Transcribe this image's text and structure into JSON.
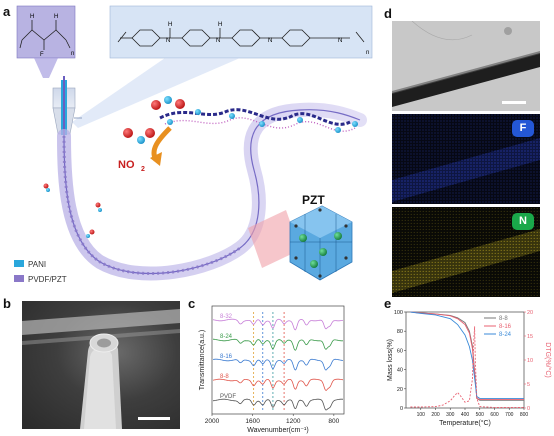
{
  "panels": {
    "a": {
      "letter": "a",
      "no2_label": "NO",
      "no2_sub": "2",
      "pzt_label": "PZT",
      "legend": [
        {
          "label": "PANI",
          "color": "#2aa7dc"
        },
        {
          "label": "PVDF/PZT",
          "color": "#8a78c8"
        }
      ],
      "subscript_n1": "n",
      "subscript_n2": "n"
    },
    "b": {
      "letter": "b"
    },
    "c": {
      "letter": "c"
    },
    "d": {
      "letter": "d",
      "map_f": {
        "label": "F",
        "color": "#2457d6"
      },
      "map_n": {
        "label": "N",
        "color": "#1aa84a"
      }
    },
    "e": {
      "letter": "e"
    }
  },
  "chart_data": [
    {
      "panel": "c",
      "type": "line",
      "xlabel": "Wavenumber(cm⁻¹)",
      "ylabel": "Transmittance(a.u.)",
      "xlim": [
        2000,
        700
      ],
      "xticks": [
        "2000",
        "1600",
        "1200",
        "800"
      ],
      "series": [
        {
          "name": "8-32",
          "color": "#c77fd8"
        },
        {
          "name": "8-24",
          "color": "#3a9a4a"
        },
        {
          "name": "8-16",
          "color": "#3a7ad0"
        },
        {
          "name": "8-8",
          "color": "#e0554a"
        },
        {
          "name": "PVDF",
          "color": "#555555"
        }
      ],
      "marker_lines": [
        {
          "x": 1590,
          "color": "#e0a030"
        },
        {
          "x": 1500,
          "color": "#3a7ad0"
        },
        {
          "x": 1400,
          "color": "#3a9aa0"
        },
        {
          "x": 1290,
          "color": "#e0554a"
        }
      ]
    },
    {
      "panel": "e",
      "type": "line",
      "xlabel": "Temperature(°C)",
      "ylabel": "Mass loss(%)",
      "y2label": "DTG(%/°C)",
      "xlim": [
        0,
        800
      ],
      "ylim": [
        0,
        100
      ],
      "y2lim": [
        0,
        20
      ],
      "xticks": [
        "100",
        "200",
        "300",
        "400",
        "500",
        "600",
        "700",
        "800"
      ],
      "yticks": [
        "0",
        "20",
        "40",
        "60",
        "80",
        "100"
      ],
      "y2ticks": [
        "0",
        "5",
        "10",
        "15",
        "20"
      ],
      "legend": [
        {
          "name": "8-8",
          "color": "#777777"
        },
        {
          "name": "8-16",
          "color": "#e86070"
        },
        {
          "name": "8-24",
          "color": "#3a8ad8"
        }
      ],
      "series": [
        {
          "name": "8-8",
          "color": "#777777",
          "x": [
            30,
            100,
            200,
            300,
            350,
            400,
            430,
            450,
            470,
            480,
            500,
            600,
            700,
            800
          ],
          "y": [
            100,
            99,
            98,
            96.5,
            94,
            89,
            80,
            65,
            30,
            10,
            8,
            8,
            8,
            8
          ]
        },
        {
          "name": "8-16",
          "color": "#e86070",
          "x": [
            30,
            100,
            200,
            300,
            350,
            400,
            430,
            450,
            470,
            480,
            500,
            600,
            700,
            800
          ],
          "y": [
            100,
            99,
            98,
            96,
            93,
            87,
            78,
            62,
            28,
            10,
            9,
            9,
            9,
            9
          ]
        },
        {
          "name": "8-24",
          "color": "#3a8ad8",
          "x": [
            30,
            100,
            200,
            300,
            350,
            400,
            430,
            450,
            470,
            480,
            500,
            600,
            700,
            800
          ],
          "y": [
            100,
            98.5,
            97,
            93,
            87,
            76,
            64,
            50,
            25,
            12,
            10,
            10,
            10,
            10
          ]
        },
        {
          "name": "DTG",
          "axis": "y2",
          "color": "#e86070",
          "dashed": true,
          "x": [
            30,
            100,
            200,
            250,
            300,
            330,
            350,
            370,
            400,
            430,
            450,
            460,
            465,
            470,
            480,
            500,
            600,
            700,
            800
          ],
          "y": [
            0.2,
            0.2,
            0.3,
            0.6,
            1.5,
            2.6,
            3.2,
            2.5,
            1.2,
            1.5,
            6,
            14,
            17,
            10,
            2,
            0.3,
            0.1,
            0.1,
            0.1
          ]
        }
      ]
    }
  ]
}
